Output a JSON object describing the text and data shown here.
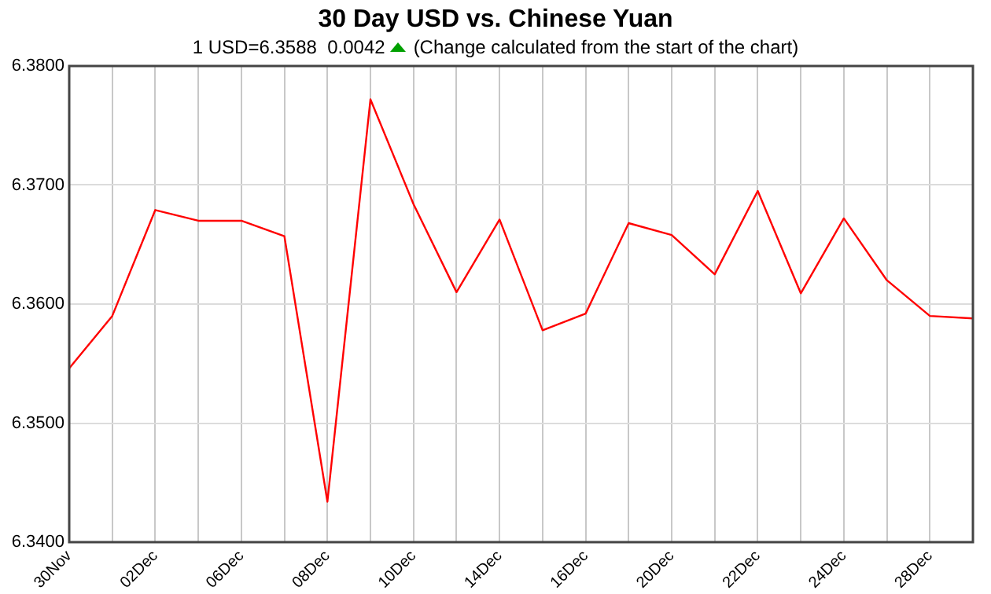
{
  "chart_data": {
    "type": "line",
    "title": "30 Day USD vs. Chinese Yuan",
    "subtitle": "1 USD=6.3588  0.0042",
    "annotations": [
      "(Change calculated from the start of the chart)"
    ],
    "categories": [
      "30Nov",
      null,
      "02Dec",
      null,
      "06Dec",
      null,
      "08Dec",
      null,
      "10Dec",
      null,
      "14Dec",
      null,
      "16Dec",
      null,
      "20Dec",
      null,
      "22Dec",
      null,
      "24Dec",
      null,
      "28Dec",
      null
    ],
    "series": [
      {
        "color": "#ff0000",
        "values": [
          6.3546,
          6.359,
          6.3679,
          6.367,
          6.367,
          6.3657,
          6.3434,
          6.3772,
          6.3684,
          6.361,
          6.3671,
          6.3578,
          6.3592,
          6.3668,
          6.3658,
          6.3625,
          6.3695,
          6.3609,
          6.3672,
          6.362,
          6.359,
          6.3588
        ]
      }
    ],
    "ylim": [
      6.34,
      6.38
    ],
    "yticks": [
      {
        "value": 6.34,
        "label": "6.3400"
      },
      {
        "value": 6.35,
        "label": "6.3500"
      },
      {
        "value": 6.36,
        "label": "6.3600"
      },
      {
        "value": 6.37,
        "label": "6.3700"
      },
      {
        "value": 6.38,
        "label": "6.3800"
      }
    ],
    "grid": true,
    "legend": false,
    "marker": "none",
    "line_style": "solid"
  }
}
